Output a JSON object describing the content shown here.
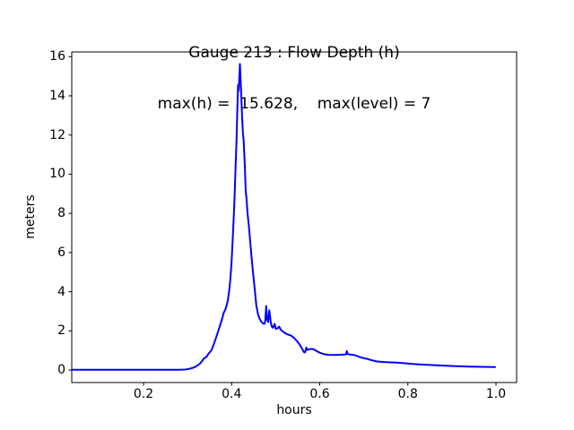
{
  "figure": {
    "title_line1": "Gauge 213 : Flow Depth (h)",
    "title_line2": "max(h) =  15.628,    max(level) = 7",
    "background": "#ffffff",
    "text_color": "#000000",
    "spine_color": "#000000"
  },
  "chart_data": {
    "type": "line",
    "title": "Gauge 213 : Flow Depth (h)",
    "subtitle": "max(h) =  15.628,    max(level) = 7",
    "xlabel": "hours",
    "ylabel": "meters",
    "max_h": 15.628,
    "max_level": 7,
    "grid": false,
    "legend": "none",
    "line_color": "#0000ff",
    "line_width": 2,
    "xlim": [
      0.0371,
      1.0468
    ],
    "ylim": [
      -0.635,
      16.24
    ],
    "xticks": {
      "values": [
        0.2,
        0.4,
        0.6,
        0.8,
        1.0
      ],
      "labels": [
        "0.2",
        "0.4",
        "0.6",
        "0.8",
        "1.0"
      ]
    },
    "yticks": {
      "values": [
        0,
        2,
        4,
        6,
        8,
        10,
        12,
        14,
        16
      ],
      "labels": [
        "0",
        "2",
        "4",
        "6",
        "8",
        "10",
        "12",
        "14",
        "16"
      ]
    },
    "series": [
      {
        "name": "h",
        "points": [
          [
            0.037,
            0.02
          ],
          [
            0.08,
            0.02
          ],
          [
            0.12,
            0.02
          ],
          [
            0.16,
            0.02
          ],
          [
            0.2,
            0.02
          ],
          [
            0.24,
            0.02
          ],
          [
            0.28,
            0.02
          ],
          [
            0.295,
            0.03
          ],
          [
            0.303,
            0.06
          ],
          [
            0.31,
            0.1
          ],
          [
            0.317,
            0.16
          ],
          [
            0.323,
            0.24
          ],
          [
            0.328,
            0.33
          ],
          [
            0.332,
            0.44
          ],
          [
            0.336,
            0.56
          ],
          [
            0.339,
            0.63
          ],
          [
            0.342,
            0.65
          ],
          [
            0.346,
            0.78
          ],
          [
            0.349,
            0.88
          ],
          [
            0.352,
            0.95
          ],
          [
            0.355,
            1.05
          ],
          [
            0.358,
            1.22
          ],
          [
            0.361,
            1.42
          ],
          [
            0.365,
            1.68
          ],
          [
            0.369,
            1.95
          ],
          [
            0.373,
            2.22
          ],
          [
            0.378,
            2.6
          ],
          [
            0.382,
            2.92
          ],
          [
            0.386,
            3.1
          ],
          [
            0.391,
            3.5
          ],
          [
            0.394,
            3.95
          ],
          [
            0.397,
            4.6
          ],
          [
            0.4,
            5.6
          ],
          [
            0.403,
            6.9
          ],
          [
            0.406,
            8.4
          ],
          [
            0.4085,
            10.0
          ],
          [
            0.411,
            11.7
          ],
          [
            0.413,
            13.4
          ],
          [
            0.4145,
            14.55
          ],
          [
            0.416,
            14.25
          ],
          [
            0.4175,
            15.0
          ],
          [
            0.4187,
            15.628
          ],
          [
            0.42,
            15.0
          ],
          [
            0.4215,
            14.3
          ],
          [
            0.423,
            13.3
          ],
          [
            0.4245,
            12.6
          ],
          [
            0.426,
            12.0
          ],
          [
            0.4272,
            11.78
          ],
          [
            0.43,
            10.4
          ],
          [
            0.432,
            9.1
          ],
          [
            0.4335,
            8.85
          ],
          [
            0.436,
            8.0
          ],
          [
            0.439,
            7.4
          ],
          [
            0.442,
            6.6
          ],
          [
            0.445,
            5.8
          ],
          [
            0.449,
            4.9
          ],
          [
            0.4525,
            4.1
          ],
          [
            0.456,
            3.3
          ],
          [
            0.46,
            2.85
          ],
          [
            0.464,
            2.6
          ],
          [
            0.468,
            2.45
          ],
          [
            0.4715,
            2.38
          ],
          [
            0.4745,
            2.36
          ],
          [
            0.4765,
            2.5
          ],
          [
            0.4785,
            3.27
          ],
          [
            0.4805,
            2.6
          ],
          [
            0.483,
            2.45
          ],
          [
            0.4855,
            3.05
          ],
          [
            0.4885,
            2.5
          ],
          [
            0.491,
            2.22
          ],
          [
            0.494,
            2.16
          ],
          [
            0.4975,
            2.36
          ],
          [
            0.5005,
            2.1
          ],
          [
            0.504,
            2.13
          ],
          [
            0.508,
            2.22
          ],
          [
            0.5115,
            2.06
          ],
          [
            0.515,
            1.99
          ],
          [
            0.521,
            1.89
          ],
          [
            0.528,
            1.81
          ],
          [
            0.535,
            1.76
          ],
          [
            0.542,
            1.64
          ],
          [
            0.549,
            1.46
          ],
          [
            0.5555,
            1.26
          ],
          [
            0.56,
            1.08
          ],
          [
            0.5645,
            0.9
          ],
          [
            0.567,
            0.92
          ],
          [
            0.5695,
            1.15
          ],
          [
            0.572,
            1.03
          ],
          [
            0.576,
            1.06
          ],
          [
            0.581,
            1.08
          ],
          [
            0.586,
            1.06
          ],
          [
            0.592,
            0.98
          ],
          [
            0.6,
            0.89
          ],
          [
            0.61,
            0.81
          ],
          [
            0.62,
            0.78
          ],
          [
            0.632,
            0.77
          ],
          [
            0.644,
            0.78
          ],
          [
            0.6555,
            0.79
          ],
          [
            0.66,
            0.81
          ],
          [
            0.6615,
            0.97
          ],
          [
            0.6635,
            0.82
          ],
          [
            0.669,
            0.79
          ],
          [
            0.678,
            0.77
          ],
          [
            0.684,
            0.73
          ],
          [
            0.69,
            0.67
          ],
          [
            0.7,
            0.61
          ],
          [
            0.71,
            0.56
          ],
          [
            0.72,
            0.49
          ],
          [
            0.73,
            0.44
          ],
          [
            0.745,
            0.41
          ],
          [
            0.76,
            0.395
          ],
          [
            0.775,
            0.38
          ],
          [
            0.79,
            0.355
          ],
          [
            0.81,
            0.315
          ],
          [
            0.83,
            0.285
          ],
          [
            0.855,
            0.255
          ],
          [
            0.88,
            0.23
          ],
          [
            0.91,
            0.2
          ],
          [
            0.94,
            0.18
          ],
          [
            0.97,
            0.165
          ],
          [
            0.998,
            0.155
          ]
        ]
      }
    ]
  }
}
